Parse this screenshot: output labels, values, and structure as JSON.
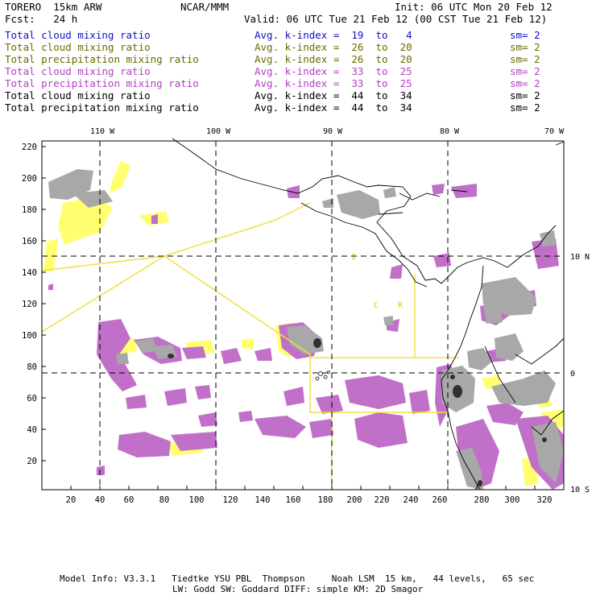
{
  "header": {
    "model": "TORERO  15km ARW",
    "center": "NCAR/MMM",
    "init": "Init: 06 UTC Mon 20 Feb 12",
    "fcst": "Fcst:   24 h",
    "valid": "Valid: 06 UTC Tue 21 Feb 12 (00 CST Tue 21 Feb 12)"
  },
  "fields": [
    {
      "name": "Total cloud mixing ratio",
      "index": "Avg. k-index =  19  to   4",
      "sm": "sm= 2",
      "color": "#1010c8"
    },
    {
      "name": "Total cloud mixing ratio",
      "index": "Avg. k-index =  26  to  20",
      "sm": "sm= 2",
      "color": "#6b6b00"
    },
    {
      "name": "Total precipitation mixing ratio",
      "index": "Avg. k-index =  26  to  20",
      "sm": "sm= 2",
      "color": "#6b6b00"
    },
    {
      "name": "Total cloud mixing ratio",
      "index": "Avg. k-index =  33  to  25",
      "sm": "sm= 2",
      "color": "#b040c0"
    },
    {
      "name": "Total precipitation mixing ratio",
      "index": "Avg. k-index =  33  to  25",
      "sm": "sm= 2",
      "color": "#b040c0"
    },
    {
      "name": "Total cloud mixing ratio",
      "index": "Avg. k-index =  44  to  34",
      "sm": "sm= 2",
      "color": "#000000"
    },
    {
      "name": "Total precipitation mixing ratio",
      "index": "Avg. k-index =  44  to  34",
      "sm": "sm= 2",
      "color": "#000000"
    }
  ],
  "map": {
    "lon_labels": [
      "110 W",
      "100 W",
      "90 W",
      "80 W",
      "70 W"
    ],
    "lat_labels": [
      "10 N",
      "0",
      "10 S"
    ],
    "x_ticks": [
      "20",
      "40",
      "60",
      "80",
      "100",
      "120",
      "140",
      "160",
      "180",
      "200",
      "220",
      "240",
      "260",
      "280",
      "300",
      "320"
    ],
    "y_ticks": [
      "220",
      "200",
      "180",
      "160",
      "140",
      "120",
      "100",
      "80",
      "60",
      "40",
      "20"
    ],
    "box_labels": [
      "I",
      "C",
      "R"
    ]
  },
  "footer": {
    "line1": "Model Info: V3.3.1   Tiedtke YSU PBL  Thompson     Noah LSM  15 km,   44 levels,   65 sec",
    "line2": "LW: Godd SW: Goddard DIFF: simple KM: 2D Smagor"
  },
  "colors": {
    "yellow_contour": "#ffff55",
    "purple_fill": "#c070c8",
    "gray_fill": "#a8a8a8",
    "dark_fill": "#303030",
    "track_line": "#f0e040"
  }
}
